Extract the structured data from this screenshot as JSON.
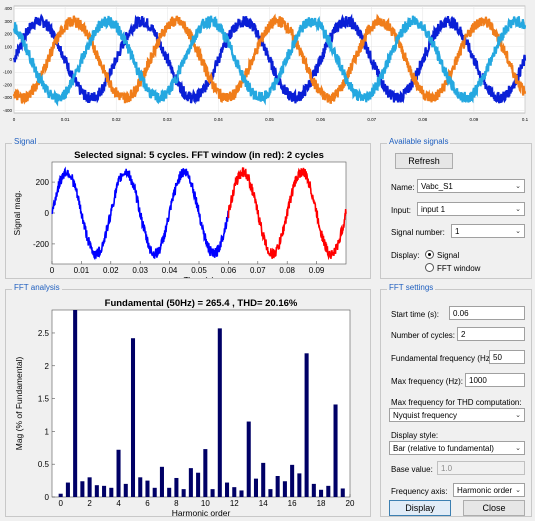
{
  "top_plot": {
    "x_ticks": [
      "0",
      "0.01",
      "0.02",
      "0.03",
      "0.04",
      "0.05",
      "0.06",
      "0.07",
      "0.08",
      "0.09",
      "0.1"
    ],
    "y_ticks": [
      "400",
      "300",
      "200",
      "100",
      "0",
      "-100",
      "-200",
      "-300",
      "-400"
    ],
    "colors": [
      "#0a1fd6",
      "#f07d1a",
      "#25a8e0"
    ]
  },
  "signal_panel": {
    "group_title": "Signal",
    "title": "Selected signal: 5 cycles. FFT window (in red): 2 cycles",
    "ylabel": "Signal mag.",
    "xlabel": "Time (s)",
    "y_ticks": [
      "200",
      "0",
      "-200"
    ],
    "x_ticks": [
      "0",
      "0.01",
      "0.02",
      "0.03",
      "0.04",
      "0.05",
      "0.06",
      "0.07",
      "0.08",
      "0.09"
    ],
    "colors": {
      "signal": "#0000ff",
      "window": "#ff0000"
    }
  },
  "available_signals": {
    "group_title": "Available signals",
    "refresh_label": "Refresh",
    "name_label": "Name:",
    "name_value": "Vabc_S1",
    "input_label": "Input:",
    "input_value": "input 1",
    "signal_number_label": "Signal number:",
    "signal_number_value": "1",
    "display_label": "Display:",
    "display_signal": "Signal",
    "display_fft": "FFT window"
  },
  "fft_analysis": {
    "group_title": "FFT analysis",
    "title": "Fundamental (50Hz) = 265.4 , THD= 20.16%",
    "ylabel": "Mag (% of Fundamental)",
    "xlabel": "Harmonic order",
    "y_ticks": [
      "0",
      "0.5",
      "1",
      "1.5",
      "2",
      "2.5"
    ],
    "x_ticks": [
      "0",
      "2",
      "4",
      "6",
      "8",
      "10",
      "12",
      "14",
      "16",
      "18",
      "20"
    ],
    "bar_color": "#000066"
  },
  "fft_settings": {
    "group_title": "FFT settings",
    "start_time_label": "Start time (s):",
    "start_time_value": "0.06",
    "cycles_label": "Number of cycles:",
    "cycles_value": "2",
    "fund_freq_label": "Fundamental frequency (Hz):",
    "fund_freq_value": "50",
    "max_freq_label": "Max frequency (Hz):",
    "max_freq_value": "1000",
    "thd_max_label": "Max frequency for THD computation:",
    "thd_max_value": "Nyquist frequency",
    "display_style_label": "Display style:",
    "display_style_value": "Bar (relative to fundamental)",
    "base_value_label": "Base value:",
    "base_value_value": "1.0",
    "freq_axis_label": "Frequency axis:",
    "freq_axis_value": "Harmonic order",
    "display_button": "Display",
    "close_button": "Close"
  },
  "chart_data": [
    {
      "type": "line",
      "x_range": [
        0,
        0.1
      ],
      "ylim": [
        -420,
        420
      ],
      "series": [
        {
          "phase_deg": 0,
          "amplitude": 300,
          "frequency_hz": 50
        },
        {
          "phase_deg": -120,
          "amplitude": 300,
          "frequency_hz": 50
        },
        {
          "phase_deg": 120,
          "amplitude": 300,
          "frequency_hz": 50
        }
      ]
    },
    {
      "type": "line",
      "title": "Selected signal: 5 cycles. FFT window (in red): 2 cycles",
      "xlabel": "Time (s)",
      "ylabel": "Signal mag.",
      "x_range": [
        0,
        0.1
      ],
      "ylim": [
        -330,
        330
      ],
      "amplitude": 265.4,
      "frequency_hz": 50,
      "fft_window": [
        0.06,
        0.1
      ]
    },
    {
      "type": "bar",
      "title": "Fundamental (50Hz) = 265.4 , THD= 20.16%",
      "xlabel": "Harmonic order",
      "ylabel": "Mag (% of Fundamental)",
      "ylim": [
        0,
        2.85
      ],
      "x": [
        0,
        0.5,
        1,
        1.5,
        2,
        2.5,
        3,
        3.5,
        4,
        4.5,
        5,
        5.5,
        6,
        6.5,
        7,
        7.5,
        8,
        8.5,
        9,
        9.5,
        10,
        10.5,
        11,
        11.5,
        12,
        12.5,
        13,
        13.5,
        14,
        14.5,
        15,
        15.5,
        16,
        16.5,
        17,
        17.5,
        18,
        18.5,
        19,
        19.5
      ],
      "values": [
        0.05,
        0.22,
        2.85,
        0.24,
        0.3,
        0.18,
        0.17,
        0.14,
        0.72,
        0.2,
        2.42,
        0.3,
        0.25,
        0.14,
        0.46,
        0.14,
        0.29,
        0.12,
        0.44,
        0.37,
        0.73,
        0.12,
        2.57,
        0.22,
        0.15,
        0.1,
        1.15,
        0.28,
        0.52,
        0.12,
        0.32,
        0.24,
        0.49,
        0.36,
        2.19,
        0.2,
        0.11,
        0.17,
        1.41,
        0.13
      ]
    }
  ]
}
